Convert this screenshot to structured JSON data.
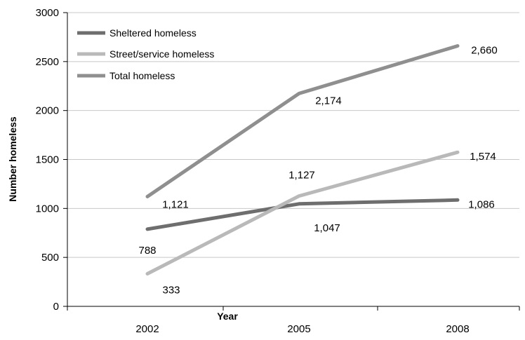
{
  "chart_data": {
    "type": "line",
    "title": "",
    "xlabel": "Year",
    "ylabel": "Number homeless",
    "categories": [
      "2002",
      "2005",
      "2008"
    ],
    "ylim": [
      0,
      3000
    ],
    "yticks": [
      0,
      500,
      1000,
      1500,
      2000,
      2500,
      3000
    ],
    "grid": true,
    "legend_position": "top-left",
    "series": [
      {
        "name": "Sheltered homeless",
        "values": [
          788,
          1047,
          1086
        ],
        "labels": [
          "788",
          "1,047",
          "1,086"
        ],
        "color": "#6e6e6e"
      },
      {
        "name": "Street/service homeless",
        "values": [
          333,
          1127,
          1574
        ],
        "labels": [
          "333",
          "1,127",
          "1,574"
        ],
        "color": "#b9b9b9"
      },
      {
        "name": "Total homeless",
        "values": [
          1121,
          2174,
          2660
        ],
        "labels": [
          "1,121",
          "2,174",
          "2,660"
        ],
        "color": "#8f8f8f"
      }
    ]
  }
}
